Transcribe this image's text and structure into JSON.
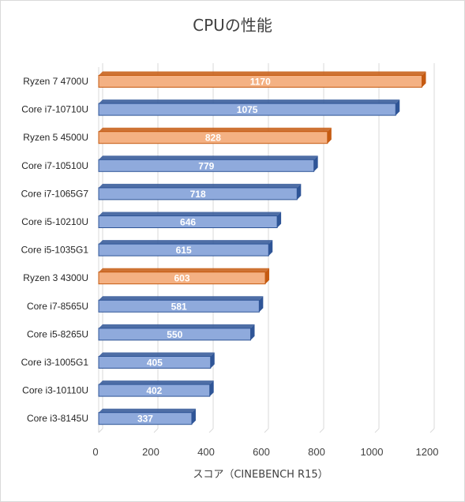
{
  "chart_data": {
    "type": "bar",
    "orientation": "horizontal",
    "title": "CPUの性能",
    "xlabel": "スコア（CINEBENCH R15）",
    "ylabel": "",
    "xlim": [
      0,
      1200
    ],
    "xticks": [
      0,
      200,
      400,
      600,
      800,
      1000,
      1200
    ],
    "grid": true,
    "categories": [
      "Ryzen 7 4700U",
      "Core i7-10710U",
      "Ryzen 5 4500U",
      "Core i7-10510U",
      "Core i7-1065G7",
      "Core i5-10210U",
      "Core i5-1035G1",
      "Ryzen 3 4300U",
      "Core i7-8565U",
      "Core i5-8265U",
      "Core i3-1005G1",
      "Core i3-10110U",
      "Core i3-8145U"
    ],
    "values": [
      1170,
      1075,
      828,
      779,
      718,
      646,
      615,
      603,
      581,
      550,
      405,
      402,
      337
    ],
    "data_labels": [
      "1170",
      "1075",
      "828",
      "779",
      "718",
      "646",
      "615",
      "603",
      "581",
      "550",
      "405",
      "402",
      "337"
    ],
    "bar_colors": [
      "#f4b183",
      "#8faadc",
      "#f4b183",
      "#8faadc",
      "#8faadc",
      "#8faadc",
      "#8faadc",
      "#f4b183",
      "#8faadc",
      "#8faadc",
      "#8faadc",
      "#8faadc",
      "#8faadc"
    ],
    "bar_edge_colors": [
      "#c55a11",
      "#2f5597",
      "#c55a11",
      "#2f5597",
      "#2f5597",
      "#2f5597",
      "#2f5597",
      "#c55a11",
      "#2f5597",
      "#2f5597",
      "#2f5597",
      "#2f5597",
      "#2f5597"
    ]
  }
}
